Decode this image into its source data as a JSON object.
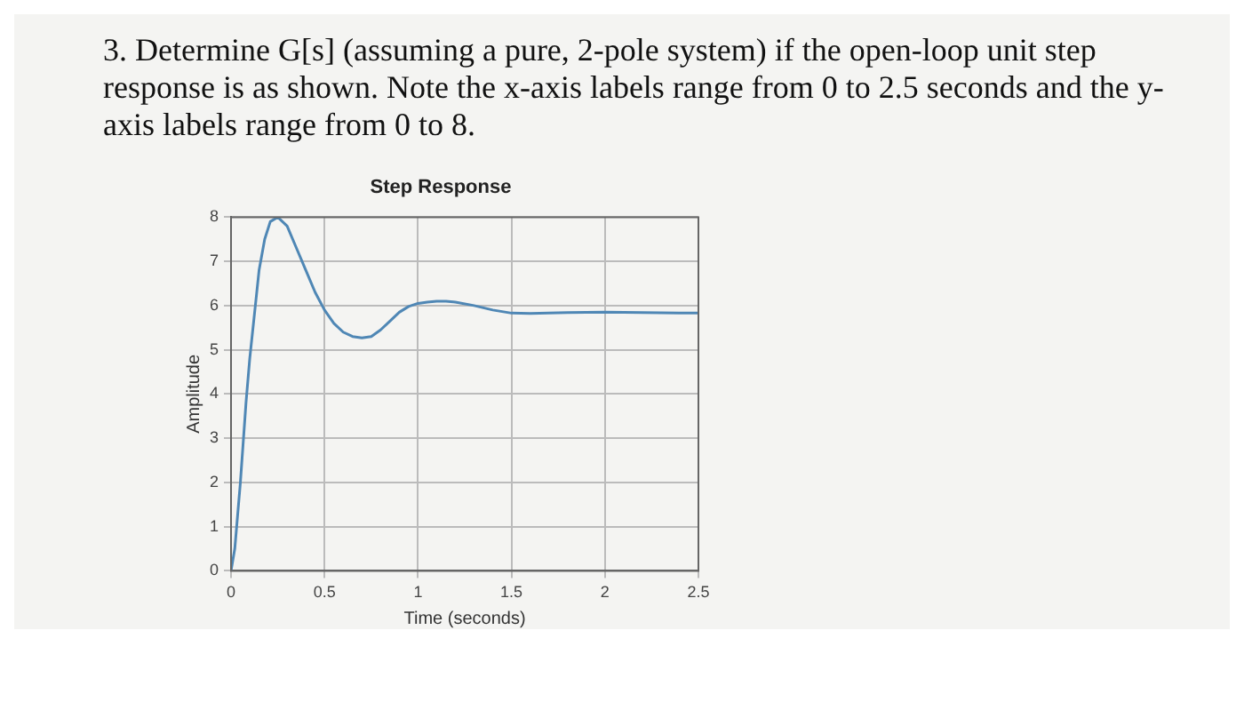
{
  "chart_data": {
    "type": "line",
    "title": "Step Response",
    "xlabel": "Time (seconds)",
    "ylabel": "Amplitude",
    "annotations": [
      "3. Determine G[s] (assuming a pure, 2-pole system) if the open-loop unit step response is as shown.  Note the x-axis labels range from 0 to 2.5 seconds and the y-axis labels range from 0 to 8."
    ],
    "x": [
      0,
      0.02,
      0.05,
      0.08,
      0.1,
      0.12,
      0.15,
      0.18,
      0.21,
      0.25,
      0.3,
      0.35,
      0.4,
      0.45,
      0.5,
      0.55,
      0.6,
      0.65,
      0.7,
      0.75,
      0.8,
      0.85,
      0.9,
      0.95,
      1.0,
      1.05,
      1.1,
      1.15,
      1.2,
      1.3,
      1.4,
      1.5,
      1.6,
      1.8,
      2.0,
      2.2,
      2.5
    ],
    "series": [
      {
        "color": "#4f87b5",
        "values": [
          0,
          0.5,
          2,
          3.8,
          4.8,
          5.6,
          6.8,
          7.5,
          7.9,
          8.0,
          7.8,
          7.3,
          6.8,
          6.3,
          5.9,
          5.6,
          5.4,
          5.3,
          5.27,
          5.3,
          5.45,
          5.65,
          5.85,
          5.98,
          6.05,
          6.08,
          6.1,
          6.1,
          6.08,
          6.0,
          5.9,
          5.83,
          5.82,
          5.84,
          5.85,
          5.84,
          5.83
        ]
      }
    ],
    "xlim": [
      0,
      2.5
    ],
    "xticks": [
      0,
      0.5,
      1,
      1.5,
      2,
      2.5
    ],
    "ylim": [
      0,
      8
    ],
    "yticks": [
      0,
      1,
      2,
      3,
      4,
      5,
      6,
      7,
      8
    ],
    "grid": true,
    "legend": false,
    "marker": "none",
    "line_style": "solid"
  }
}
